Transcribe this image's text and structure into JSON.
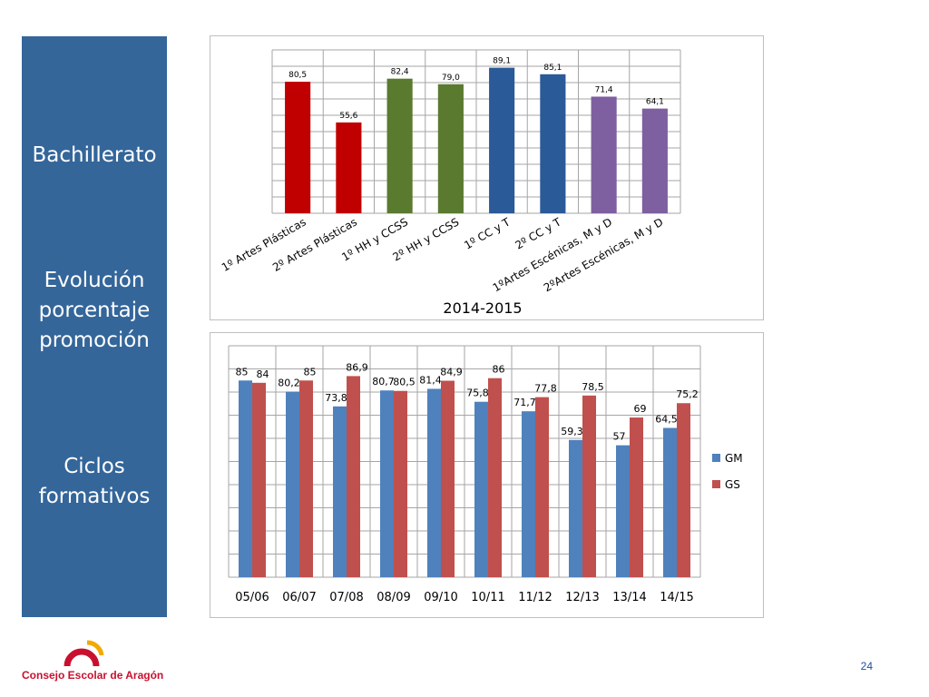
{
  "sidebar": {
    "title1": "Bachillerato",
    "title2": "Evolución porcentaje promoción",
    "title3": "Ciclos formativos",
    "background": "#34669a"
  },
  "chart_data": [
    {
      "type": "bar",
      "title": "",
      "caption": "2014-2015",
      "categories": [
        "1º Artes Plásticas",
        "2º Artes Plásticas",
        "1º HH y CCSS",
        "2º HH y CCSS",
        "1º CC y T",
        "2º CC y T",
        "1ºArtes Escénicas, M y D",
        "2ºArtes Escénicas, M y D"
      ],
      "values": [
        80.5,
        55.6,
        82.4,
        79.0,
        89.1,
        85.1,
        71.4,
        64.1
      ],
      "value_labels": [
        "80,5",
        "55,6",
        "82,4",
        "79,0",
        "89,1",
        "85,1",
        "71,4",
        "64,1"
      ],
      "bar_colors": [
        "#c00000",
        "#c00000",
        "#5a7a30",
        "#5a7a30",
        "#2a5a97",
        "#2a5a97",
        "#7e5fa0",
        "#7e5fa0"
      ],
      "ylim": [
        0,
        100
      ],
      "grid": true,
      "legend": "none"
    },
    {
      "type": "bar",
      "title": "",
      "categories": [
        "05/06",
        "06/07",
        "07/08",
        "08/09",
        "09/10",
        "10/11",
        "11/12",
        "12/13",
        "13/14",
        "14/15"
      ],
      "series": [
        {
          "name": "GM",
          "color": "#4f81bd",
          "values": [
            85,
            80.2,
            73.8,
            80.7,
            81.4,
            75.8,
            71.7,
            59.3,
            57,
            64.5
          ],
          "labels": [
            "85",
            "80,2",
            "73,8",
            "80,7",
            "81,4",
            "75,8",
            "71,7",
            "59,3",
            "57",
            "64,5"
          ]
        },
        {
          "name": "GS",
          "color": "#c0504d",
          "values": [
            84,
            85,
            86.9,
            80.5,
            84.9,
            86,
            77.8,
            78.5,
            69,
            75.2
          ],
          "labels": [
            "84",
            "85",
            "86,9",
            "80,5",
            "84,9",
            "86",
            "77,8",
            "78,5",
            "69",
            "75,2"
          ]
        }
      ],
      "ylim": [
        0,
        100
      ],
      "grid": true,
      "legend": "right"
    }
  ],
  "footer": {
    "organization": "Consejo Escolar de Aragón",
    "page_number": "24"
  }
}
